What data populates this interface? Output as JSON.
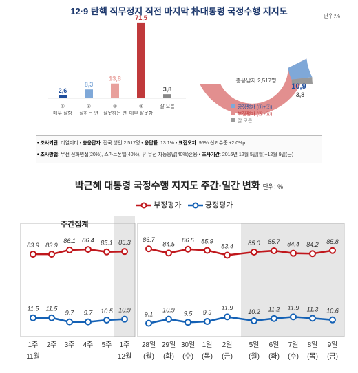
{
  "top": {
    "title": "12·9 탄핵 직무정지 직전 마지막 朴대통령 국정수행 지지도",
    "unit": "단위:%",
    "bar_chart": {
      "type": "bar",
      "categories": [
        {
          "num": "①",
          "label": "매우 잘함"
        },
        {
          "num": "②",
          "label": "잘하는 편"
        },
        {
          "num": "③",
          "label": "잘못하는 편"
        },
        {
          "num": "④",
          "label": "매우 잘못함"
        },
        {
          "num": "",
          "label": "잘 모름"
        }
      ],
      "values": [
        2.6,
        8.3,
        13.8,
        71.5,
        3.8
      ],
      "value_labels": [
        "2,6",
        "8,3",
        "13,8",
        "71,5",
        "3,8"
      ],
      "colors": [
        "#1f4e9c",
        "#7fa8d8",
        "#e8a09c",
        "#c0393b",
        "#888888"
      ]
    },
    "donut_chart": {
      "type": "pie",
      "center_label": "총응답자 2,517명",
      "slices": [
        {
          "name": "긍정평가 (①+②)",
          "value": 10.9,
          "label": "10,9",
          "color": "#7fa8d8"
        },
        {
          "name": "부정평가 (③+④)",
          "value": 85.3,
          "label": "85,3",
          "color": "#e28f8f"
        },
        {
          "name": "잘 모름",
          "value": 3.8,
          "label": "3,8",
          "color": "#999999"
        }
      ]
    },
    "info": {
      "row1": [
        {
          "key": "• 조사기관",
          "val": ": 리얼미터 •"
        },
        {
          "key": "총응답자",
          "val": ": 전국 성인 2,517명 •"
        },
        {
          "key": "응답률",
          "val": ": 13.1% •"
        },
        {
          "key": "표집오차",
          "val": ": 95% 신뢰수준 ±2.0%p"
        }
      ],
      "row2": [
        {
          "key": "• 조사방법",
          "val": ": 무선 전화면접(20%), 스마트폰앱(40%), 유·무선 자동응답(40%)혼용 •"
        },
        {
          "key": "조사기간",
          "val": ": 2016년 12월 5일(월)~12월 9일(금)"
        }
      ]
    }
  },
  "bottom": {
    "title": "박근혜 대통령 국정수행 지지도 주간·일간 변화",
    "unit": "단위: %",
    "legend_negative": "부정평가",
    "legend_positive": "긍정평가",
    "weekly_label": "주간집계",
    "colors": {
      "negative": "#c0171c",
      "positive": "#1461b5",
      "shade": "#e6e6e6"
    }
  },
  "chart_data": {
    "type": "line",
    "title": "박근혜 대통령 국정수행 지지도 주간·일간 변화",
    "unit": "단위: %",
    "categories": [
      {
        "top": "1주",
        "bottom": "11월"
      },
      {
        "top": "2주",
        "bottom": ""
      },
      {
        "top": "3주",
        "bottom": ""
      },
      {
        "top": "4주",
        "bottom": ""
      },
      {
        "top": "5주",
        "bottom": ""
      },
      {
        "top": "1주",
        "bottom": "12월"
      },
      {
        "top": "28일",
        "bottom": "(월)"
      },
      {
        "top": "29일",
        "bottom": "(화)"
      },
      {
        "top": "30일",
        "bottom": "(수)"
      },
      {
        "top": "1일",
        "bottom": "(목)"
      },
      {
        "top": "2일",
        "bottom": "(금)"
      },
      {
        "top": "5일",
        "bottom": "(월)"
      },
      {
        "top": "6일",
        "bottom": "(화)"
      },
      {
        "top": "7일",
        "bottom": "(수)"
      },
      {
        "top": "8일",
        "bottom": "(목)"
      },
      {
        "top": "9일",
        "bottom": "(금)"
      }
    ],
    "series": [
      {
        "name": "부정평가",
        "values": [
          83.9,
          83.9,
          86.1,
          86.4,
          85.1,
          85.3,
          86.7,
          84.5,
          86.5,
          85.9,
          83.4,
          85.0,
          85.7,
          84.4,
          84.2,
          85.8
        ]
      },
      {
        "name": "긍정평가",
        "values": [
          11.5,
          11.5,
          9.7,
          9.7,
          10.5,
          10.9,
          9.1,
          10.9,
          9.5,
          9.9,
          11.9,
          10.2,
          11.2,
          11.9,
          11.3,
          10.6
        ]
      }
    ],
    "groups": [
      "weekly",
      "weekly",
      "weekly",
      "weekly",
      "weekly",
      "weekly",
      "daily",
      "daily",
      "daily",
      "daily",
      "daily",
      "daily",
      "daily",
      "daily",
      "daily",
      "daily"
    ],
    "highlighted": [
      5,
      11,
      12,
      13,
      14,
      15
    ]
  }
}
